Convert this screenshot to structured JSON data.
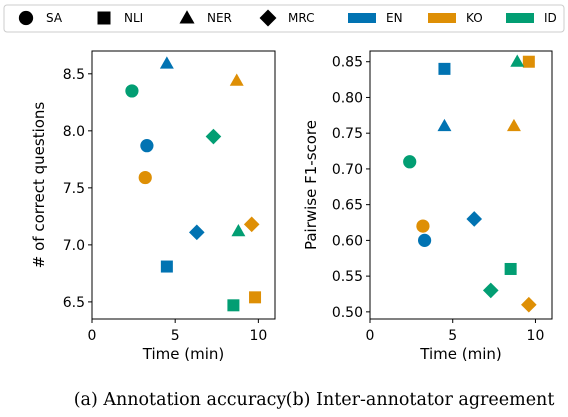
{
  "legend": {
    "items": [
      {
        "label": "SA",
        "kind": "marker",
        "marker": "circle",
        "color": "#000000"
      },
      {
        "label": "NLI",
        "kind": "marker",
        "marker": "square",
        "color": "#000000"
      },
      {
        "label": "NER",
        "kind": "marker",
        "marker": "triangle",
        "color": "#000000"
      },
      {
        "label": "MRC",
        "kind": "marker",
        "marker": "diamond",
        "color": "#000000"
      },
      {
        "label": "EN",
        "kind": "patch",
        "color": "#0173b2"
      },
      {
        "label": "KO",
        "kind": "patch",
        "color": "#de8f05"
      },
      {
        "label": "ID",
        "kind": "patch",
        "color": "#029e73"
      }
    ]
  },
  "captions": {
    "a": "(a) Annotation accuracy",
    "b": "(b) Inter-annotator agreement"
  },
  "chart_data": [
    {
      "type": "scatter",
      "title": "",
      "xlabel": "Time (min)",
      "ylabel": "# of correct questions",
      "xlim": [
        0,
        11
      ],
      "ylim": [
        6.35,
        8.7
      ],
      "xticks": [
        0,
        5,
        10
      ],
      "yticks": [
        6.5,
        7.0,
        7.5,
        8.0,
        8.5
      ],
      "ytick_labels": [
        "6.5",
        "7.0",
        "7.5",
        "8.0",
        "8.5"
      ],
      "points": [
        {
          "task": "SA",
          "lang": "ID",
          "x": 2.4,
          "y": 8.35
        },
        {
          "task": "SA",
          "lang": "EN",
          "x": 3.3,
          "y": 7.87
        },
        {
          "task": "SA",
          "lang": "KO",
          "x": 3.2,
          "y": 7.59
        },
        {
          "task": "NER",
          "lang": "EN",
          "x": 4.5,
          "y": 8.59
        },
        {
          "task": "NER",
          "lang": "KO",
          "x": 8.7,
          "y": 8.44
        },
        {
          "task": "NER",
          "lang": "ID",
          "x": 8.8,
          "y": 7.12
        },
        {
          "task": "MRC",
          "lang": "ID",
          "x": 7.3,
          "y": 7.95
        },
        {
          "task": "MRC",
          "lang": "EN",
          "x": 6.3,
          "y": 7.11
        },
        {
          "task": "MRC",
          "lang": "KO",
          "x": 9.6,
          "y": 7.18
        },
        {
          "task": "NLI",
          "lang": "EN",
          "x": 4.5,
          "y": 6.81
        },
        {
          "task": "NLI",
          "lang": "KO",
          "x": 9.8,
          "y": 6.54
        },
        {
          "task": "NLI",
          "lang": "ID",
          "x": 8.5,
          "y": 6.47
        }
      ]
    },
    {
      "type": "scatter",
      "title": "",
      "xlabel": "Time (min)",
      "ylabel": "Pairwise F1-score",
      "xlim": [
        0,
        11
      ],
      "ylim": [
        0.49,
        0.865
      ],
      "xticks": [
        0,
        5,
        10
      ],
      "yticks": [
        0.5,
        0.55,
        0.6,
        0.65,
        0.7,
        0.75,
        0.8,
        0.85
      ],
      "ytick_labels": [
        "0.50",
        "0.55",
        "0.60",
        "0.65",
        "0.70",
        "0.75",
        "0.80",
        "0.85"
      ],
      "points": [
        {
          "task": "SA",
          "lang": "ID",
          "x": 2.4,
          "y": 0.71
        },
        {
          "task": "SA",
          "lang": "KO",
          "x": 3.2,
          "y": 0.62
        },
        {
          "task": "SA",
          "lang": "EN",
          "x": 3.3,
          "y": 0.6
        },
        {
          "task": "NLI",
          "lang": "EN",
          "x": 4.5,
          "y": 0.84
        },
        {
          "task": "NLI",
          "lang": "KO",
          "x": 9.6,
          "y": 0.85
        },
        {
          "task": "NLI",
          "lang": "ID",
          "x": 8.5,
          "y": 0.56
        },
        {
          "task": "NER",
          "lang": "EN",
          "x": 4.5,
          "y": 0.76
        },
        {
          "task": "NER",
          "lang": "KO",
          "x": 8.7,
          "y": 0.76
        },
        {
          "task": "NER",
          "lang": "ID",
          "x": 8.9,
          "y": 0.85
        },
        {
          "task": "MRC",
          "lang": "EN",
          "x": 6.3,
          "y": 0.63
        },
        {
          "task": "MRC",
          "lang": "ID",
          "x": 7.3,
          "y": 0.53
        },
        {
          "task": "MRC",
          "lang": "KO",
          "x": 9.6,
          "y": 0.51
        }
      ]
    }
  ]
}
